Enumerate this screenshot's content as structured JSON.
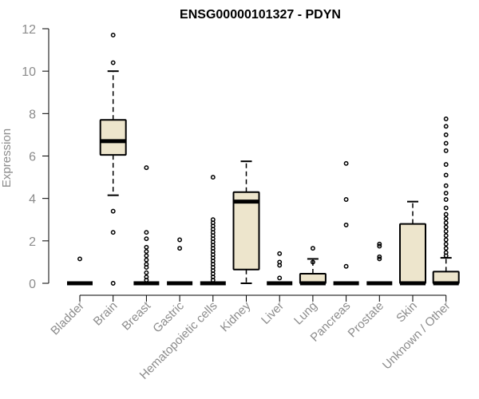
{
  "chart_data": {
    "type": "boxplot",
    "title": "ENSG00000101327 - PDYN",
    "ylabel": "Expression",
    "xlabel": "",
    "ylim": [
      0,
      12
    ],
    "yticks": [
      0,
      2,
      4,
      6,
      8,
      10,
      12
    ],
    "grid": false,
    "box_fill": "#ede5cc",
    "categories": [
      "Bladder",
      "Brain",
      "Breast",
      "Gastric",
      "Hematopoietic cells",
      "Kidney",
      "Liver",
      "Lung",
      "Pancreas",
      "Prostate",
      "Skin",
      "Unknown / Other"
    ],
    "boxes": [
      {
        "q1": 0,
        "median": 0,
        "q3": 0,
        "whisker_low": 0,
        "whisker_high": 0,
        "outliers": [
          1.15
        ]
      },
      {
        "q1": 6.05,
        "median": 6.7,
        "q3": 7.7,
        "whisker_low": 4.15,
        "whisker_high": 10.0,
        "outliers": [
          11.7,
          10.4,
          3.4,
          2.4,
          0
        ]
      },
      {
        "q1": 0,
        "median": 0,
        "q3": 0,
        "whisker_low": 0,
        "whisker_high": 0,
        "outliers": [
          5.45,
          2.4,
          2.1,
          1.7,
          1.5,
          1.3,
          1.1,
          0.9,
          0.75,
          0.5,
          0.3,
          0.15
        ]
      },
      {
        "q1": 0,
        "median": 0,
        "q3": 0,
        "whisker_low": 0,
        "whisker_high": 0,
        "outliers": [
          2.05,
          1.65
        ]
      },
      {
        "q1": 0,
        "median": 0,
        "q3": 0,
        "whisker_low": 0,
        "whisker_high": 0,
        "outliers": [
          5.0,
          3.0,
          2.85,
          2.7,
          2.55,
          2.4,
          2.25,
          2.1,
          1.95,
          1.8,
          1.65,
          1.5,
          1.35,
          1.2,
          1.05,
          0.9,
          0.75,
          0.6,
          0.45,
          0.3,
          0.15
        ]
      },
      {
        "q1": 0.65,
        "median": 3.85,
        "q3": 4.3,
        "whisker_low": 0,
        "whisker_high": 5.75,
        "outliers": []
      },
      {
        "q1": 0,
        "median": 0,
        "q3": 0,
        "whisker_low": 0,
        "whisker_high": 0,
        "outliers": [
          1.4,
          1.0,
          0.85,
          0.25
        ]
      },
      {
        "q1": 0,
        "median": 0,
        "q3": 0.45,
        "whisker_low": 0,
        "whisker_high": 1.15,
        "outliers": [
          1.65,
          1.0
        ]
      },
      {
        "q1": 0,
        "median": 0,
        "q3": 0,
        "whisker_low": 0,
        "whisker_high": 0,
        "outliers": [
          5.65,
          3.95,
          2.75,
          0.8
        ]
      },
      {
        "q1": 0,
        "median": 0,
        "q3": 0,
        "whisker_low": 0,
        "whisker_high": 0,
        "outliers": [
          1.85,
          1.75,
          1.25,
          1.15
        ]
      },
      {
        "q1": 0,
        "median": 0,
        "q3": 2.8,
        "whisker_low": 0,
        "whisker_high": 3.85,
        "outliers": []
      },
      {
        "q1": 0,
        "median": 0,
        "q3": 0.55,
        "whisker_low": 0,
        "whisker_high": 1.2,
        "outliers": [
          7.75,
          7.4,
          7.0,
          6.6,
          6.25,
          5.6,
          5.1,
          4.6,
          4.25,
          3.95,
          3.55,
          3.25,
          3.05,
          2.85,
          2.65,
          2.45,
          2.25,
          2.05,
          1.85,
          1.65,
          1.45,
          1.3
        ]
      }
    ]
  }
}
